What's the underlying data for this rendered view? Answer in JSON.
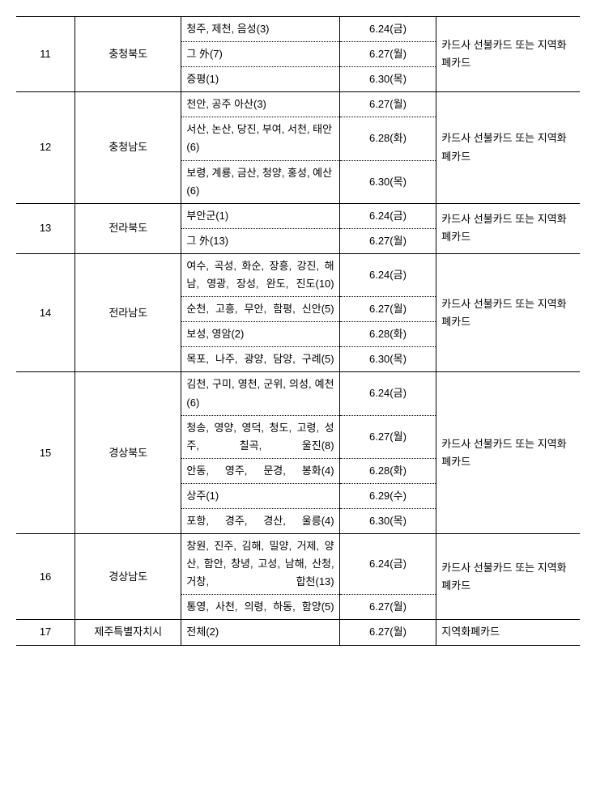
{
  "rows": [
    {
      "num": "11",
      "prov": "충청북도",
      "areas": [
        {
          "text": "청주, 제천, 음성(3)",
          "date": "6.24(금)"
        },
        {
          "text": "그 外(7)",
          "date": "6.27(월)"
        },
        {
          "text": "증평(1)",
          "date": "6.30(목)"
        }
      ],
      "note": "카드사 선불카드 또는 지역화폐카드"
    },
    {
      "num": "12",
      "prov": "충청남도",
      "areas": [
        {
          "text": "천안, 공주 아산(3)",
          "date": "6.27(월)"
        },
        {
          "text": "서산, 논산, 당진, 부여, 서천, 태안(6)",
          "date": "6.28(화)"
        },
        {
          "text": "보령, 계룡, 금산, 청양, 홍성, 예산(6)",
          "date": "6.30(목)"
        }
      ],
      "note": "카드사 선불카드 또는 지역화폐카드"
    },
    {
      "num": "13",
      "prov": "전라북도",
      "areas": [
        {
          "text": "부안군(1)",
          "date": "6.24(금)"
        },
        {
          "text": "그 外(13)",
          "date": "6.27(월)"
        }
      ],
      "note": "카드사 선불카드 또는 지역화폐카드"
    },
    {
      "num": "14",
      "prov": "전라남도",
      "areas": [
        {
          "text": "여수, 곡성, 화순, 장흥, 강진, 해남, 영광, 장성, 완도, 진도(10)",
          "date": "6.24(금)",
          "justify": true
        },
        {
          "text": "순천, 고흥, 무안, 함평, 신안(5)",
          "date": "6.27(월)",
          "justify": true
        },
        {
          "text": "보성, 영암(2)",
          "date": "6.28(화)"
        },
        {
          "text": "목포, 나주, 광양, 담양, 구례(5)",
          "date": "6.30(목)",
          "justify": true
        }
      ],
      "note": "카드사 선불카드 또는 지역화폐카드"
    },
    {
      "num": "15",
      "prov": "경상북도",
      "areas": [
        {
          "text": "김천, 구미, 영천, 군위, 의성, 예천(6)",
          "date": "6.24(금)",
          "justify": true
        },
        {
          "text": "청송, 영양, 영덕, 청도, 고령, 성주, 칠곡, 울진(8)",
          "date": "6.27(월)",
          "justify": true
        },
        {
          "text": "안동, 영주, 문경, 봉화(4)",
          "date": "6.28(화)",
          "justify": true
        },
        {
          "text": "상주(1)",
          "date": "6.29(수)"
        },
        {
          "text": "포항, 경주, 경산, 울릉(4)",
          "date": "6.30(목)",
          "justify": true
        }
      ],
      "note": "카드사 선불카드 또는 지역화폐카드"
    },
    {
      "num": "16",
      "prov": "경상남도",
      "areas": [
        {
          "text": "창원, 진주, 김해, 밀양, 거제, 양산, 함안, 창녕, 고성, 남해, 산청, 거창, 합천(13)",
          "date": "6.24(금)",
          "justify": true
        },
        {
          "text": "통영, 사천, 의령, 하동, 함양(5)",
          "date": "6.27(월)",
          "justify": true
        }
      ],
      "note": "카드사 선불카드 또는 지역화폐카드"
    },
    {
      "num": "17",
      "prov": "제주특별자치시",
      "areas": [
        {
          "text": "전체(2)",
          "date": "6.27(월)"
        }
      ],
      "note": "지역화폐카드"
    }
  ]
}
